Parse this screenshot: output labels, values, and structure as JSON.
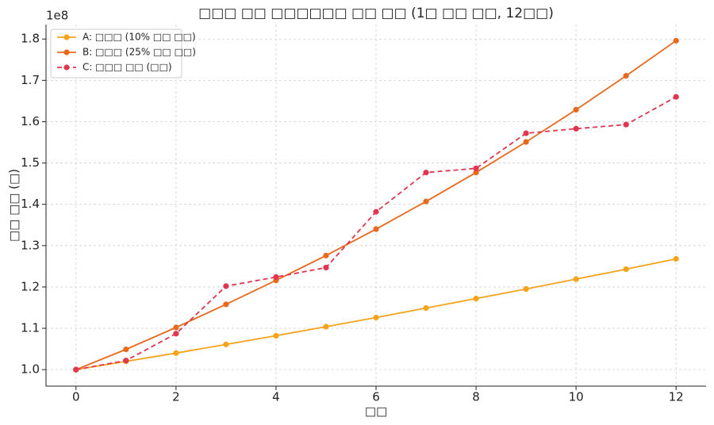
{
  "chart_data": {
    "type": "line",
    "title": "□□□ □□ □□□□□□ □□ □□ (1□ □□ □□, 12□□)",
    "x_label": "□□",
    "y_label": "□□ □□ (□)",
    "y_offset_label": "1e8",
    "x": [
      0,
      1,
      2,
      3,
      4,
      5,
      6,
      7,
      8,
      9,
      10,
      11,
      12
    ],
    "series": [
      {
        "name": "A: □□□ (10% □□ □□)",
        "color": "#f5a31a",
        "linestyle": "solid",
        "values": [
          100000000,
          102000000,
          104000000,
          106100000,
          108200000,
          110400000,
          112600000,
          114900000,
          117200000,
          119500000,
          121900000,
          124300000,
          126800000
        ]
      },
      {
        "name": "B: □□□ (25% □□ □□)",
        "color": "#e8691e",
        "linestyle": "solid",
        "values": [
          100000000,
          104900000,
          110200000,
          115800000,
          121600000,
          127600000,
          134000000,
          140700000,
          147700000,
          155100000,
          162900000,
          171100000,
          179600000
        ]
      },
      {
        "name": "C: □□□ □□ (□□)",
        "color": "#e0364f",
        "linestyle": "dashed",
        "values": [
          100000000,
          102200000,
          108700000,
          120200000,
          122400000,
          124700000,
          138200000,
          147700000,
          148700000,
          157200000,
          158300000,
          159300000,
          166000000
        ]
      }
    ],
    "xlim": [
      -0.6,
      12.6
    ],
    "xticks": [
      0,
      2,
      4,
      6,
      8,
      10,
      12
    ],
    "ylim": [
      96000000,
      183500000
    ],
    "yticks": [
      {
        "value": 100000000,
        "label": "1.0"
      },
      {
        "value": 110000000,
        "label": "1.1"
      },
      {
        "value": 120000000,
        "label": "1.2"
      },
      {
        "value": 130000000,
        "label": "1.3"
      },
      {
        "value": 140000000,
        "label": "1.4"
      },
      {
        "value": 150000000,
        "label": "1.5"
      },
      {
        "value": 160000000,
        "label": "1.6"
      },
      {
        "value": 170000000,
        "label": "1.7"
      },
      {
        "value": 180000000,
        "label": "1.8"
      }
    ],
    "grid": true,
    "legend": "upper-left"
  }
}
